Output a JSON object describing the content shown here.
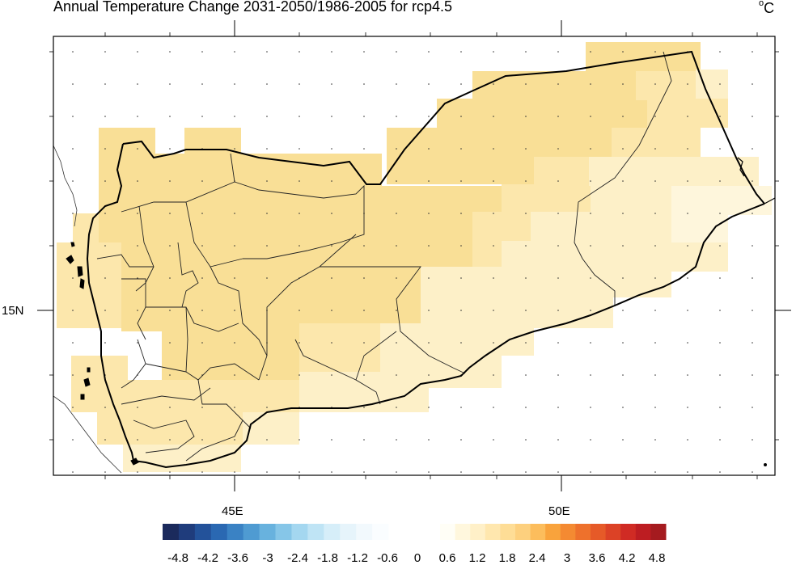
{
  "title": "Annual Temperature Change 2031-2050/1986-2005 for rcp4.5",
  "units": {
    "base": "o",
    "text": "C"
  },
  "axes": {
    "x_ticks": [
      "45E",
      "50E"
    ],
    "y_ticks": [
      "15N"
    ]
  },
  "colorbar": {
    "labels": [
      "-4.8",
      "-4.2",
      "-3.6",
      "-3",
      "-2.4",
      "-1.8",
      "-1.2",
      "-0.6",
      "0",
      "0.6",
      "1.2",
      "1.8",
      "2.4",
      "3",
      "3.6",
      "4.2",
      "4.8"
    ],
    "negative_colors": [
      "#1b2a5c",
      "#1f3c7c",
      "#23529a",
      "#2a68b2",
      "#3a82c4",
      "#4f9bd2",
      "#68b2de",
      "#86c6e8",
      "#a4d7f0",
      "#bfe4f5",
      "#d6eef9",
      "#e6f4fb",
      "#f2f9fd",
      "#fafdff"
    ],
    "positive_colors": [
      "#fffef6",
      "#fff7dd",
      "#fff0c8",
      "#ffe7ae",
      "#fedd96",
      "#fdd07e",
      "#fcbd5c",
      "#f9a33c",
      "#f48a32",
      "#ee712c",
      "#e65a28",
      "#dc4226",
      "#d02b24",
      "#bd1d22",
      "#a51b1f"
    ]
  },
  "map_colors": {
    "light": "#fdf0c8",
    "medium": "#fce7ac",
    "strong": "#f9df96",
    "pale": "#fef6dc"
  }
}
